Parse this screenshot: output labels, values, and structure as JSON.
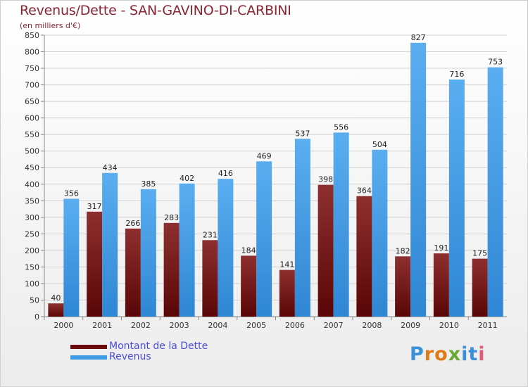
{
  "title": "Revenus/Dette - SAN-GAVINO-DI-CARBINI",
  "subtitle": "(en milliers d'€)",
  "brand": {
    "name": "Proxiti",
    "letters": [
      "P",
      "r",
      "o",
      "x",
      "i",
      "t",
      "i"
    ],
    "letter_colors": [
      "#3a8fd6",
      "#e07b1a",
      "#e07b1a",
      "#6aa832",
      "#3a8fd6",
      "#3a8fd6",
      "#e05a7a"
    ]
  },
  "legend": [
    {
      "label": "Montant de la Dette",
      "color": "#6b0c0c"
    },
    {
      "label": "Revenus",
      "color": "#3d9be6"
    }
  ],
  "chart_data": {
    "type": "bar",
    "title": "Revenus/Dette - SAN-GAVINO-DI-CARBINI",
    "subtitle": "(en milliers d'€)",
    "xlabel": "",
    "ylabel": "",
    "ylim": [
      0,
      850
    ],
    "ytick_step": 50,
    "grid": "horizontal",
    "legend_position": "bottom-left",
    "categories": [
      "2000",
      "2001",
      "2002",
      "2003",
      "2004",
      "2005",
      "2006",
      "2007",
      "2008",
      "2009",
      "2010",
      "2011"
    ],
    "series": [
      {
        "name": "Montant de la Dette",
        "color": "#6b0c0c",
        "values": [
          40,
          317,
          266,
          283,
          231,
          184,
          141,
          398,
          364,
          182,
          191,
          175
        ]
      },
      {
        "name": "Revenus",
        "color": "#3d9be6",
        "values": [
          356,
          434,
          385,
          402,
          416,
          469,
          537,
          556,
          504,
          827,
          716,
          753
        ]
      }
    ]
  }
}
